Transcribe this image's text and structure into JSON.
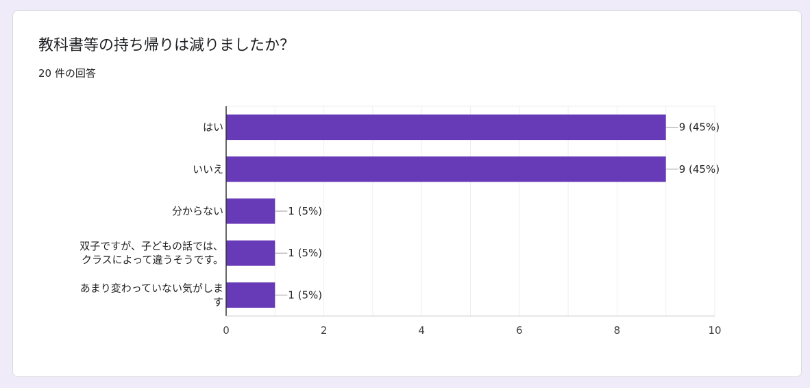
{
  "question": {
    "title": "教科書等の持ち帰りは減りましたか？",
    "response_count": "20 件の回答"
  },
  "colors": {
    "bar": "#673ab7",
    "background": "#efebf8",
    "grid": "#eeeeee",
    "axis": "#333333"
  },
  "chart_data": {
    "type": "bar",
    "orientation": "horizontal",
    "categories": [
      [
        "はい"
      ],
      [
        "いいえ"
      ],
      [
        "分からない"
      ],
      [
        "双子ですが、子どもの話では、",
        "クラスによって違うそうです。"
      ],
      [
        "あまり変わっていない気がしま",
        "す"
      ]
    ],
    "values": [
      9,
      9,
      1,
      1,
      1
    ],
    "data_labels": [
      "9 (45%)",
      "9 (45%)",
      "1 (5%)",
      "1 (5%)",
      "1 (5%)"
    ],
    "xlim": [
      0,
      10
    ],
    "xticks": [
      0,
      2,
      4,
      6,
      8,
      10
    ],
    "grid": true,
    "legend": "none"
  }
}
